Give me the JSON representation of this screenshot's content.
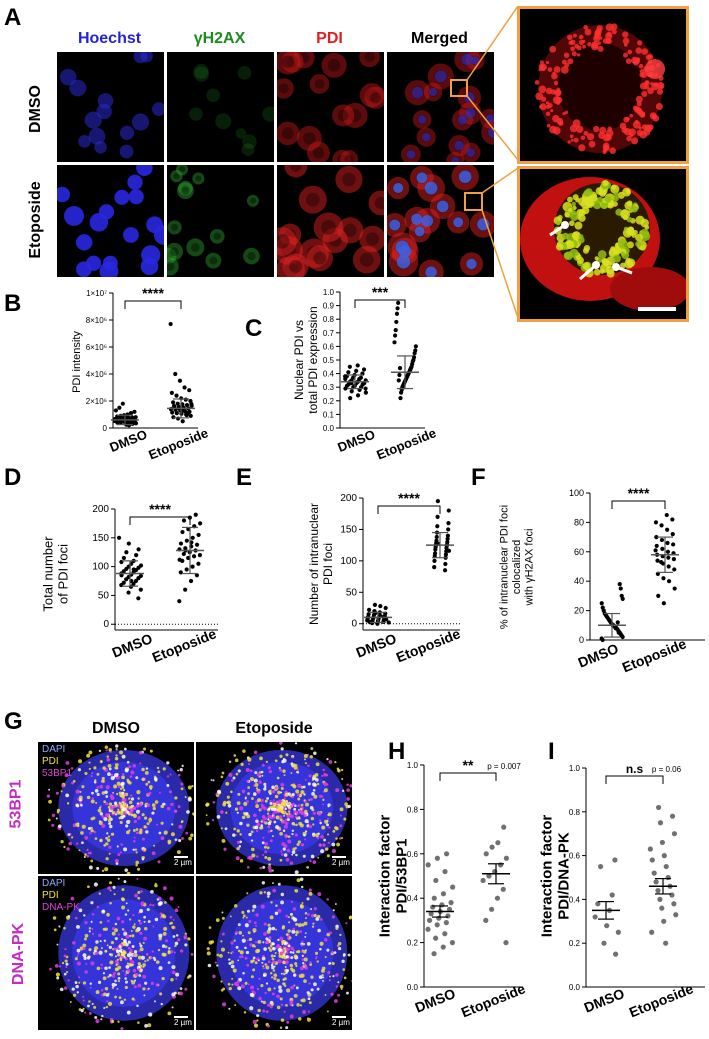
{
  "panelA": {
    "letter": "A",
    "columns": [
      "Hoechst",
      "γH2AX",
      "PDI",
      "Merged"
    ],
    "column_colors": [
      "#2323d8",
      "#1f8a1f",
      "#e02020",
      "#000000"
    ],
    "rows": [
      "DMSO",
      "Etoposide"
    ]
  },
  "panelG": {
    "letter": "G",
    "columns": [
      "DMSO",
      "Etoposide"
    ],
    "rows": [
      "53BP1",
      "DNA-PK"
    ],
    "legend_top": [
      "DAPI",
      "PDI",
      "53BP1"
    ],
    "legend_bottom": [
      "DAPI",
      "PDI",
      "DNA-PK"
    ],
    "legend_colors": [
      "#8fa8ff",
      "#f0e040",
      "#e040e0"
    ],
    "scalebar": "2 µm"
  },
  "chart_data": [
    {
      "id": "B",
      "type": "scatter",
      "categories": [
        "DMSO",
        "Etoposide"
      ],
      "ylabel": "PDI intensity",
      "ytick_labels": [
        "0",
        "2×10⁶",
        "4×10⁶",
        "6×10⁶",
        "8×10⁶",
        "1×10⁷"
      ],
      "ylim": [
        0,
        10000000
      ],
      "significance": "****",
      "means": [
        600000,
        1450000
      ],
      "sd": [
        350000,
        700000
      ],
      "series": [
        {
          "values": [
            200000,
            300000,
            350000,
            400000,
            420000,
            450000,
            480000,
            500000,
            520000,
            540000,
            560000,
            580000,
            600000,
            620000,
            640000,
            660000,
            680000,
            700000,
            720000,
            750000,
            780000,
            800000,
            850000,
            900000,
            950000,
            1000000,
            1100000,
            1200000,
            1300000,
            1500000,
            1800000,
            250000,
            380000,
            460000,
            530000,
            610000,
            690000,
            770000
          ]
        },
        {
          "values": [
            500000,
            700000,
            800000,
            900000,
            1000000,
            1050000,
            1100000,
            1150000,
            1200000,
            1250000,
            1300000,
            1350000,
            1400000,
            1450000,
            1500000,
            1550000,
            1600000,
            1650000,
            1700000,
            1750000,
            1800000,
            1900000,
            2000000,
            2100000,
            2200000,
            2400000,
            2600000,
            2800000,
            3000000,
            3500000,
            4000000,
            7700000,
            1120000,
            1320000,
            1480000,
            1620000,
            1780000,
            950000
          ]
        }
      ]
    },
    {
      "id": "C",
      "type": "scatter",
      "categories": [
        "DMSO",
        "Etoposide"
      ],
      "ylabel": "Nuclear PDI vs total PDI expression",
      "ylabel_lines": [
        "Nuclear PDI vs",
        "total PDI expression"
      ],
      "ytick_labels": [
        "0.0",
        "0.1",
        "0.2",
        "0.3",
        "0.4",
        "0.5",
        "0.6",
        "0.7",
        "0.8",
        "0.9",
        "1.0"
      ],
      "ylim": [
        0,
        1.0
      ],
      "significance": "***",
      "means": [
        0.34,
        0.41
      ],
      "sd": [
        0.05,
        0.12
      ],
      "series": [
        {
          "values": [
            0.22,
            0.24,
            0.26,
            0.27,
            0.28,
            0.29,
            0.3,
            0.3,
            0.31,
            0.31,
            0.32,
            0.32,
            0.33,
            0.33,
            0.34,
            0.34,
            0.35,
            0.35,
            0.36,
            0.36,
            0.37,
            0.37,
            0.38,
            0.39,
            0.4,
            0.41,
            0.42,
            0.43,
            0.45,
            0.46,
            0.29,
            0.33,
            0.36,
            0.38
          ]
        },
        {
          "values": [
            0.22,
            0.26,
            0.28,
            0.3,
            0.31,
            0.32,
            0.33,
            0.34,
            0.35,
            0.36,
            0.37,
            0.38,
            0.39,
            0.4,
            0.41,
            0.42,
            0.43,
            0.44,
            0.45,
            0.47,
            0.49,
            0.5,
            0.52,
            0.55,
            0.57,
            0.6,
            0.63,
            0.68,
            0.72,
            0.78,
            0.84,
            0.88,
            0.92,
            0.35,
            0.39,
            0.44
          ]
        }
      ]
    },
    {
      "id": "D",
      "type": "scatter",
      "categories": [
        "DMSO",
        "Etoposide"
      ],
      "ylabel": "Total number of PDI foci",
      "ylabel_lines": [
        "Total number",
        "of  PDI foci"
      ],
      "ytick_labels": [
        "0",
        "50",
        "100",
        "150",
        "200"
      ],
      "ylim": [
        -10,
        200
      ],
      "significance": "****",
      "means": [
        88,
        128
      ],
      "sd": [
        22,
        40
      ],
      "series": [
        {
          "values": [
            45,
            55,
            60,
            65,
            68,
            70,
            72,
            75,
            78,
            80,
            82,
            84,
            86,
            88,
            90,
            92,
            94,
            96,
            98,
            100,
            102,
            105,
            108,
            110,
            115,
            120,
            125,
            130,
            140,
            150,
            75,
            85,
            95
          ]
        },
        {
          "values": [
            40,
            60,
            75,
            85,
            90,
            95,
            100,
            105,
            110,
            115,
            118,
            120,
            122,
            125,
            128,
            130,
            132,
            135,
            138,
            140,
            145,
            150,
            155,
            160,
            165,
            170,
            175,
            180,
            185,
            190,
            112,
            128,
            142
          ]
        }
      ]
    },
    {
      "id": "E",
      "type": "scatter",
      "categories": [
        "DMSO",
        "Etoposide"
      ],
      "ylabel": "Number of intranuclear PDI foci",
      "ylabel_lines": [
        "Number of intranuclear",
        "PDI foci"
      ],
      "ytick_labels": [
        "0",
        "50",
        "100",
        "150",
        "200"
      ],
      "ylim": [
        -10,
        200
      ],
      "significance": "****",
      "means": [
        10,
        125
      ],
      "sd": [
        8,
        20
      ],
      "series": [
        {
          "values": [
            0,
            1,
            2,
            3,
            4,
            5,
            5,
            6,
            7,
            8,
            8,
            9,
            10,
            10,
            11,
            12,
            13,
            14,
            15,
            16,
            18,
            20,
            22,
            25,
            28,
            30,
            3,
            7,
            12,
            17
          ]
        },
        {
          "values": [
            85,
            90,
            95,
            100,
            105,
            108,
            110,
            112,
            115,
            118,
            120,
            122,
            124,
            125,
            126,
            128,
            130,
            132,
            135,
            138,
            140,
            145,
            150,
            155,
            160,
            170,
            180,
            195,
            116,
            127
          ]
        }
      ]
    },
    {
      "id": "F",
      "type": "scatter",
      "categories": [
        "DMSO",
        "Etoposide"
      ],
      "ylabel": "% of intranuclear PDI foci colocalized with γH2AX foci",
      "ylabel_lines": [
        "% of intranuclear PDI foci",
        "colocalized",
        "with γH2AX foci"
      ],
      "ytick_labels": [
        "0",
        "20",
        "40",
        "60",
        "80",
        "100"
      ],
      "ylim": [
        0,
        100
      ],
      "significance": "****",
      "means": [
        10,
        58
      ],
      "sd": [
        8,
        12
      ],
      "series": [
        {
          "values": [
            0,
            1,
            2,
            3,
            4,
            5,
            6,
            7,
            8,
            8,
            9,
            10,
            10,
            11,
            12,
            13,
            14,
            15,
            16,
            17,
            18,
            20,
            22,
            25,
            28,
            30,
            35,
            38,
            5,
            12
          ]
        },
        {
          "values": [
            25,
            30,
            35,
            40,
            42,
            45,
            48,
            50,
            52,
            54,
            55,
            56,
            57,
            58,
            59,
            60,
            62,
            64,
            65,
            66,
            68,
            70,
            72,
            75,
            78,
            80,
            82,
            85,
            53,
            61
          ]
        }
      ]
    },
    {
      "id": "H",
      "type": "scatter",
      "categories": [
        "DMSO",
        "Etoposide"
      ],
      "ylabel": "Interaction factor PDI/53BP1",
      "ylabel_lines": [
        "Interaction factor",
        "PDI/53BP1"
      ],
      "ytick_labels": [
        "0.0",
        "0.2",
        "0.4",
        "0.6",
        "0.8",
        "1.0"
      ],
      "ylim": [
        0,
        1.0
      ],
      "significance": "**",
      "pvalue": "p = 0.007",
      "means": [
        0.34,
        0.51
      ],
      "sem": [
        0.025,
        0.045
      ],
      "series": [
        {
          "values": [
            0.15,
            0.18,
            0.2,
            0.22,
            0.24,
            0.26,
            0.28,
            0.29,
            0.3,
            0.31,
            0.32,
            0.33,
            0.34,
            0.35,
            0.36,
            0.37,
            0.38,
            0.4,
            0.42,
            0.45,
            0.48,
            0.52,
            0.55,
            0.58,
            0.6
          ]
        },
        {
          "values": [
            0.2,
            0.3,
            0.35,
            0.4,
            0.44,
            0.48,
            0.5,
            0.52,
            0.55,
            0.58,
            0.6,
            0.63,
            0.65,
            0.72
          ]
        }
      ]
    },
    {
      "id": "I",
      "type": "scatter",
      "categories": [
        "DMSO",
        "Etoposide"
      ],
      "ylabel": "Interaction factor PDI/DNA-PK",
      "ylabel_lines": [
        "Interaction factor",
        "PDI/DNA-PK"
      ],
      "ytick_labels": [
        "0.0",
        "0.2",
        "0.4",
        "0.6",
        "0.8",
        "1.0"
      ],
      "ylim": [
        0,
        1.0
      ],
      "significance": "n.s",
      "pvalue": "p = 0.06",
      "means": [
        0.35,
        0.46
      ],
      "sem": [
        0.04,
        0.035
      ],
      "series": [
        {
          "values": [
            0.15,
            0.2,
            0.25,
            0.28,
            0.32,
            0.35,
            0.38,
            0.42,
            0.55,
            0.58
          ]
        },
        {
          "values": [
            0.2,
            0.25,
            0.3,
            0.33,
            0.36,
            0.38,
            0.4,
            0.42,
            0.44,
            0.46,
            0.48,
            0.5,
            0.52,
            0.55,
            0.58,
            0.6,
            0.63,
            0.66,
            0.7,
            0.75,
            0.78,
            0.82
          ]
        }
      ]
    }
  ]
}
